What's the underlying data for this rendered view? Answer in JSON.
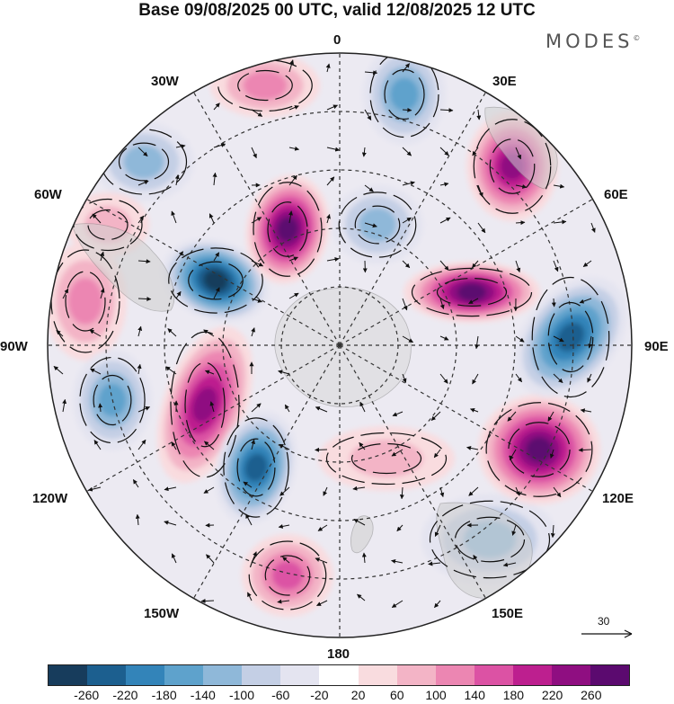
{
  "title": "Base 09/08/2025 00 UTC, valid 12/08/2025 12 UTC",
  "brand": "MODES",
  "brand_mark": "©",
  "longitude_labels": {
    "lon_0": "0",
    "lon_30e": "30E",
    "lon_60e": "60E",
    "lon_90e": "90E",
    "lon_120e": "120E",
    "lon_150e": "150E",
    "lon_180": "180",
    "lon_150w": "150W",
    "lon_120w": "120W",
    "lon_90w": "90W",
    "lon_60w": "60W",
    "lon_30w": "30W"
  },
  "reference_vector": {
    "value": "30"
  },
  "colorbar": {
    "ticks": [
      "-260",
      "-220",
      "-180",
      "-140",
      "-100",
      "-60",
      "-20",
      "20",
      "60",
      "100",
      "140",
      "180",
      "220",
      "260"
    ],
    "colors": [
      "#173c5c",
      "#1c5f8f",
      "#3384b9",
      "#5ea2cc",
      "#8fb8d9",
      "#c4cfe5",
      "#e4e4f0",
      "#ffffff",
      "#f9dcdf",
      "#f3b4c6",
      "#ec86b2",
      "#dc52a4",
      "#bd1f8f",
      "#8f0e81",
      "#5b0a6f"
    ]
  },
  "anomaly_centers": [
    {
      "name": "low-south-atlantic-west",
      "value": -260
    },
    {
      "name": "high-south-pacific",
      "value": 260
    },
    {
      "name": "high-indian-ocean",
      "value": 260
    },
    {
      "name": "low-indian-ocean-east",
      "value": -220
    },
    {
      "name": "high-weddell",
      "value": 240
    },
    {
      "name": "high-amundsen",
      "value": 220
    },
    {
      "name": "low-ross-north",
      "value": -200
    },
    {
      "name": "high-east-antarctica",
      "value": 200
    }
  ]
}
